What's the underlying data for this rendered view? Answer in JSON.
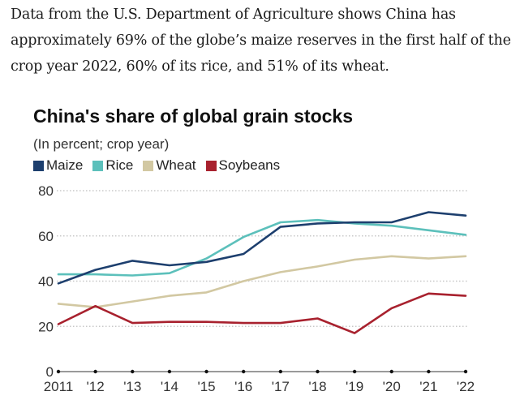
{
  "intro_text": "Data from the U.S. Department of Agriculture shows China has approximately 69% of the globe’s maize reserves in the first half of the crop year 2022, 60% of its rice, and 51% of its wheat.",
  "chart_data": {
    "type": "line",
    "title": "China's share of global grain stocks",
    "subtitle": "(In percent; crop year)",
    "xlabel": "",
    "ylabel": "",
    "x": [
      "2011",
      "'12",
      "'13",
      "'14",
      "'15",
      "'16",
      "'17",
      "'18",
      "'19",
      "'20",
      "'21",
      "'22"
    ],
    "ylim": [
      0,
      80
    ],
    "yticks": [
      0,
      20,
      40,
      60,
      80
    ],
    "grid": true,
    "legend_position": "top-left",
    "series": [
      {
        "name": "Maize",
        "color": "#1d3f6e",
        "values": [
          39,
          45,
          49,
          47,
          48.5,
          52,
          64,
          65.5,
          66,
          66,
          70.5,
          69
        ]
      },
      {
        "name": "Rice",
        "color": "#5cc0bb",
        "values": [
          43,
          43,
          42.5,
          43.5,
          50,
          59.5,
          66,
          67,
          65.5,
          64.5,
          62.5,
          60.5
        ]
      },
      {
        "name": "Wheat",
        "color": "#d2c8a2",
        "values": [
          30,
          28.5,
          31,
          33.5,
          35,
          40,
          44,
          46.5,
          49.5,
          51,
          50,
          51
        ]
      },
      {
        "name": "Soybeans",
        "color": "#a8212e",
        "values": [
          21,
          29,
          21.5,
          22,
          22,
          21.5,
          21.5,
          23.5,
          17,
          28,
          34.5,
          33.5
        ]
      }
    ]
  }
}
